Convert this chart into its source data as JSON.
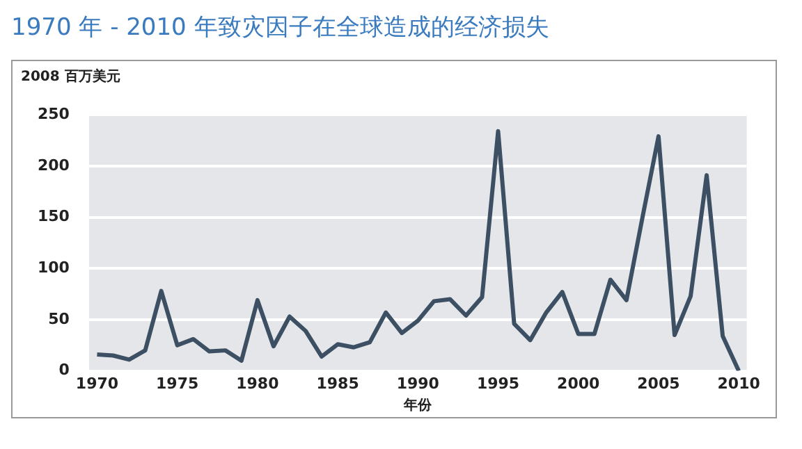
{
  "chart_data": {
    "type": "line",
    "title": "1970 年 - 2010 年致灾因子在全球造成的经济损失",
    "ylabel": "2008 百万美元",
    "xlabel": "年份",
    "x": [
      1970,
      1971,
      1972,
      1973,
      1974,
      1975,
      1976,
      1977,
      1978,
      1979,
      1980,
      1981,
      1982,
      1983,
      1984,
      1985,
      1986,
      1987,
      1988,
      1989,
      1990,
      1991,
      1992,
      1993,
      1994,
      1995,
      1996,
      1997,
      1998,
      1999,
      2000,
      2001,
      2002,
      2003,
      2004,
      2005,
      2006,
      2007,
      2008,
      2009,
      2010
    ],
    "values": [
      16,
      15,
      11,
      20,
      78,
      25,
      31,
      19,
      20,
      10,
      69,
      24,
      53,
      39,
      14,
      26,
      23,
      28,
      57,
      37,
      49,
      68,
      70,
      54,
      72,
      234,
      46,
      30,
      57,
      77,
      36,
      36,
      89,
      69,
      150,
      229,
      35,
      73,
      191,
      34,
      0
    ],
    "color": "#3d4f63",
    "xlim": [
      1969.5,
      2010.5
    ],
    "xticks": [
      1970,
      1975,
      1980,
      1985,
      1990,
      1995,
      2000,
      2005,
      2010
    ],
    "ylim": [
      0,
      250
    ],
    "yticks": [
      0,
      50,
      100,
      150,
      200,
      250
    ],
    "grid": "y",
    "legend": false,
    "marker": "none",
    "line_style": "solid"
  }
}
